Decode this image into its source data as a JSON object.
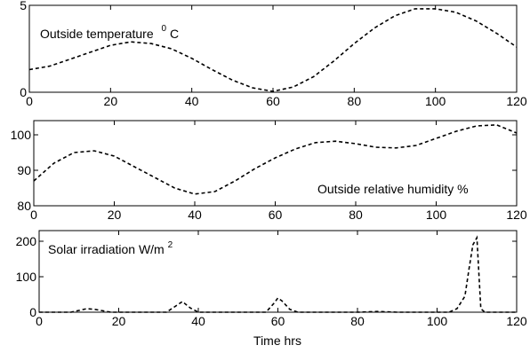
{
  "figure": {
    "xlabel": "Time hrs"
  },
  "chart_data": [
    {
      "type": "line",
      "annotation": "Outside temperature",
      "annotation_sup": "0",
      "annotation_suffix": "C",
      "xlim": [
        0,
        120
      ],
      "ylim": [
        0,
        5
      ],
      "xticks": [
        0,
        20,
        40,
        60,
        80,
        100,
        120
      ],
      "yticks": [
        0,
        5
      ],
      "line_style": "dashed",
      "color": "#000000",
      "series": [
        {
          "x": [
            0,
            5,
            10,
            15,
            20,
            25,
            30,
            35,
            40,
            45,
            50,
            55,
            60,
            65,
            70,
            75,
            80,
            85,
            90,
            95,
            100,
            105,
            110,
            115,
            120
          ],
          "y": [
            1.3,
            1.5,
            1.9,
            2.3,
            2.7,
            2.9,
            2.8,
            2.5,
            1.95,
            1.3,
            0.7,
            0.25,
            0.05,
            0.3,
            0.9,
            1.8,
            2.8,
            3.7,
            4.4,
            4.8,
            4.8,
            4.6,
            4.1,
            3.4,
            2.6
          ]
        }
      ]
    },
    {
      "type": "line",
      "annotation": "Outside relative humidity %",
      "xlim": [
        0,
        120
      ],
      "ylim": [
        80,
        104
      ],
      "xticks": [
        0,
        20,
        40,
        60,
        80,
        100,
        120
      ],
      "yticks": [
        80,
        90,
        100
      ],
      "line_style": "dashed",
      "color": "#000000",
      "series": [
        {
          "x": [
            0,
            5,
            10,
            15,
            20,
            25,
            30,
            35,
            40,
            45,
            50,
            55,
            60,
            65,
            70,
            75,
            80,
            85,
            90,
            95,
            100,
            105,
            110,
            115,
            120
          ],
          "y": [
            87,
            92,
            95,
            95.5,
            94,
            91,
            88,
            85,
            83.3,
            84,
            87,
            90.5,
            93.5,
            96,
            97.8,
            98.2,
            97.5,
            96.5,
            96.3,
            97,
            99,
            101,
            102.5,
            102.8,
            100.5
          ]
        }
      ]
    },
    {
      "type": "line",
      "annotation": "Solar irradiation W/m",
      "annotation_sup": "2",
      "xlim": [
        0,
        120
      ],
      "ylim": [
        0,
        230
      ],
      "xticks": [
        0,
        20,
        40,
        60,
        80,
        100,
        120
      ],
      "yticks": [
        0,
        100,
        200
      ],
      "line_style": "dashed",
      "color": "#000000",
      "series": [
        {
          "x": [
            0,
            8,
            10,
            12,
            14,
            16,
            18,
            32,
            34,
            36,
            38,
            40,
            57,
            59,
            60,
            61,
            63,
            65,
            80,
            85,
            90,
            103,
            105,
            107,
            108,
            109,
            110,
            111,
            112,
            120
          ],
          "y": [
            0,
            0,
            5,
            10,
            8,
            4,
            0,
            0,
            15,
            30,
            12,
            0,
            0,
            25,
            40,
            32,
            8,
            0,
            0,
            2,
            0,
            0,
            10,
            45,
            120,
            190,
            210,
            10,
            0,
            0
          ]
        }
      ]
    }
  ]
}
